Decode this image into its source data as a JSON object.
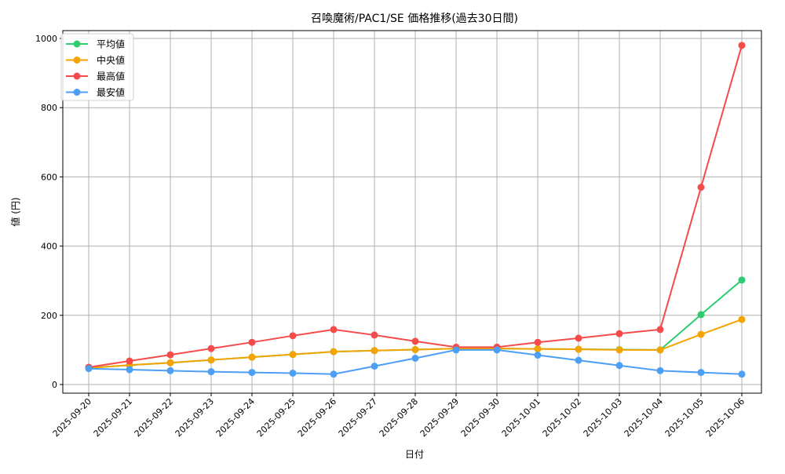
{
  "chart_data": {
    "type": "line",
    "title": "召喚魔術/PAC1/SE 価格推移(過去30日間)",
    "xlabel": "日付",
    "ylabel": "値 (円)",
    "ylim": [
      -30,
      1030
    ],
    "yticks": [
      0,
      200,
      400,
      600,
      800,
      1000
    ],
    "grid": true,
    "legend_position": "upper left",
    "categories": [
      "2025-09-20",
      "2025-09-21",
      "2025-09-22",
      "2025-09-23",
      "2025-09-24",
      "2025-09-25",
      "2025-09-26",
      "2025-09-27",
      "2025-09-28",
      "2025-09-29",
      "2025-09-30",
      "2025-10-01",
      "2025-10-02",
      "2025-10-03",
      "2025-10-04",
      "2025-10-05",
      "2025-10-06"
    ],
    "series": [
      {
        "name": "平均値",
        "color": "#2ecc71",
        "values": [
          48,
          56,
          63,
          71,
          79,
          87,
          95,
          98,
          101,
          104,
          104,
          103,
          102,
          101,
          100,
          202,
          302
        ]
      },
      {
        "name": "中央値",
        "color": "#f5a300",
        "values": [
          48,
          56,
          63,
          71,
          79,
          87,
          95,
          98,
          101,
          104,
          104,
          103,
          102,
          100,
          100,
          145,
          188
        ]
      },
      {
        "name": "最高値",
        "color": "#f44b4b",
        "values": [
          50,
          68,
          86,
          104,
          122,
          141,
          159,
          143,
          125,
          108,
          108,
          122,
          134,
          147,
          159,
          570,
          980
        ]
      },
      {
        "name": "最安値",
        "color": "#4d9ef5",
        "values": [
          46,
          43,
          40,
          37,
          35,
          33,
          30,
          53,
          76,
          100,
          100,
          85,
          70,
          55,
          40,
          35,
          30
        ]
      }
    ]
  }
}
